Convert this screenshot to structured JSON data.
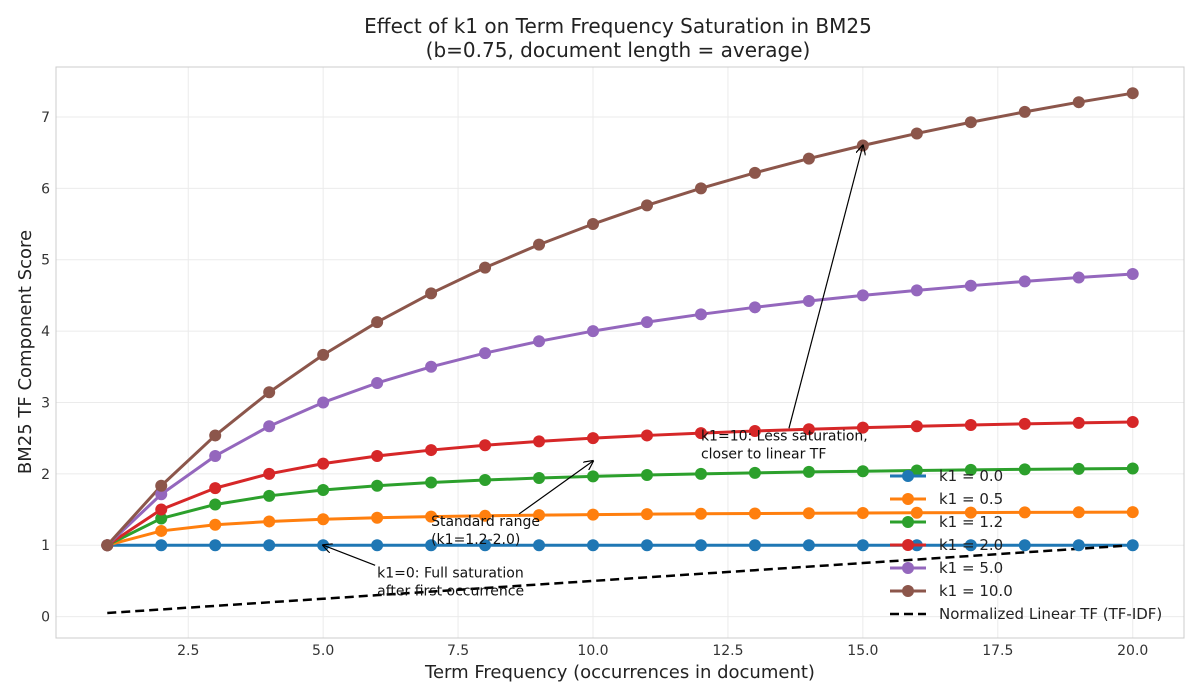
{
  "chart_data": {
    "type": "line",
    "title": "Effect of k1 on Term Frequency Saturation in BM25",
    "subtitle": "(b=0.75, document length = average)",
    "xlabel": "Term Frequency (occurrences in document)",
    "ylabel": "BM25 TF Component Score",
    "xlim": [
      0.05,
      20.95
    ],
    "ylim": [
      -0.3,
      7.7
    ],
    "xticks": [
      2.5,
      5.0,
      7.5,
      10.0,
      12.5,
      15.0,
      17.5,
      20.0
    ],
    "xtick_labels": [
      "2.5",
      "5.0",
      "7.5",
      "10.0",
      "12.5",
      "15.0",
      "17.5",
      "20.0"
    ],
    "yticks": [
      0,
      1,
      2,
      3,
      4,
      5,
      6,
      7
    ],
    "ytick_labels": [
      "0",
      "1",
      "2",
      "3",
      "4",
      "5",
      "6",
      "7"
    ],
    "grid": true,
    "legend_position": "lower-right",
    "x": [
      1,
      2,
      3,
      4,
      5,
      6,
      7,
      8,
      9,
      10,
      11,
      12,
      13,
      14,
      15,
      16,
      17,
      18,
      19,
      20
    ],
    "series": [
      {
        "name": "k1 = 0.0",
        "color": "#1f77b4",
        "marker": true,
        "dashed": false,
        "values": [
          1.0,
          1.0,
          1.0,
          1.0,
          1.0,
          1.0,
          1.0,
          1.0,
          1.0,
          1.0,
          1.0,
          1.0,
          1.0,
          1.0,
          1.0,
          1.0,
          1.0,
          1.0,
          1.0,
          1.0
        ]
      },
      {
        "name": "k1 = 0.5",
        "color": "#ff7f0e",
        "marker": true,
        "dashed": false,
        "values": [
          1.0,
          1.2,
          1.286,
          1.333,
          1.364,
          1.385,
          1.4,
          1.412,
          1.421,
          1.429,
          1.435,
          1.44,
          1.444,
          1.448,
          1.452,
          1.455,
          1.457,
          1.46,
          1.462,
          1.463
        ]
      },
      {
        "name": "k1 = 1.2",
        "color": "#2ca02c",
        "marker": true,
        "dashed": false,
        "values": [
          1.0,
          1.375,
          1.571,
          1.692,
          1.774,
          1.833,
          1.878,
          1.913,
          1.941,
          1.964,
          1.984,
          2.0,
          2.014,
          2.027,
          2.037,
          2.047,
          2.055,
          2.063,
          2.069,
          2.075
        ]
      },
      {
        "name": "k1 = 2.0",
        "color": "#d62728",
        "marker": true,
        "dashed": false,
        "values": [
          1.0,
          1.5,
          1.8,
          2.0,
          2.143,
          2.25,
          2.333,
          2.4,
          2.455,
          2.5,
          2.538,
          2.571,
          2.6,
          2.625,
          2.647,
          2.667,
          2.684,
          2.7,
          2.714,
          2.727
        ]
      },
      {
        "name": "k1 = 5.0",
        "color": "#9467bd",
        "marker": true,
        "dashed": false,
        "values": [
          1.0,
          1.714,
          2.25,
          2.667,
          3.0,
          3.273,
          3.5,
          3.692,
          3.857,
          4.0,
          4.125,
          4.235,
          4.333,
          4.421,
          4.5,
          4.571,
          4.636,
          4.696,
          4.75,
          4.8
        ]
      },
      {
        "name": "k1 = 10.0",
        "color": "#8c564b",
        "marker": true,
        "dashed": false,
        "values": [
          1.0,
          1.833,
          2.538,
          3.143,
          3.667,
          4.125,
          4.529,
          4.889,
          5.211,
          5.5,
          5.762,
          6.0,
          6.217,
          6.417,
          6.6,
          6.769,
          6.926,
          7.071,
          7.207,
          7.333
        ]
      },
      {
        "name": "Normalized Linear TF (TF-IDF)",
        "color": "#000000",
        "marker": false,
        "dashed": true,
        "values": [
          0.05,
          0.1,
          0.15,
          0.2,
          0.25,
          0.3,
          0.35,
          0.4,
          0.45,
          0.5,
          0.55,
          0.6,
          0.65,
          0.7,
          0.75,
          0.8,
          0.85,
          0.9,
          0.95,
          1.0
        ]
      }
    ],
    "annotations": [
      {
        "lines": [
          "k1=0: Full saturation",
          "after first occurrence"
        ],
        "text_xy": [
          6.0,
          0.55
        ],
        "arrow_to": [
          5.0,
          1.0
        ]
      },
      {
        "lines": [
          "Standard range",
          "(k1=1.2-2.0)"
        ],
        "text_xy": [
          7.0,
          1.27
        ],
        "arrow_to": [
          10.0,
          2.18
        ]
      },
      {
        "lines": [
          "k1=10: Less saturation,",
          "closer to linear TF"
        ],
        "text_xy": [
          12.0,
          2.47
        ],
        "arrow_to": [
          15.0,
          6.6
        ]
      }
    ]
  }
}
